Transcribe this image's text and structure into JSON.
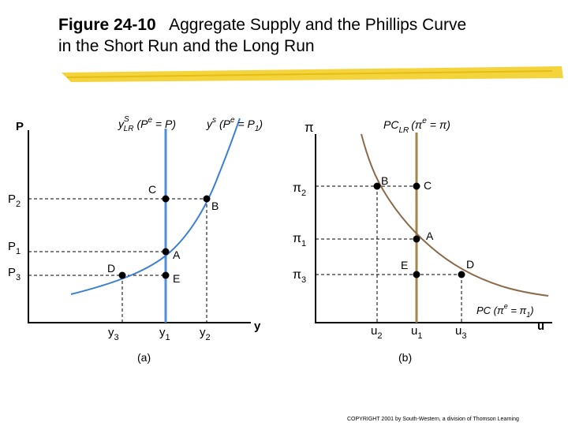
{
  "title": {
    "number": "Figure 24-10",
    "line1": "Aggregate Supply and the Phillips Curve",
    "line2": "in the Short Run and the Long Run"
  },
  "panel_a": {
    "caption": "(a)",
    "y_axis": "P",
    "x_axis": "y",
    "lras": {
      "main": "y",
      "sup": "S",
      "sub": "LR",
      "rest": "(P",
      "sup2": "e",
      "rest2": " = P)"
    },
    "sras": {
      "main": "y",
      "sup": "s",
      "rest": "(P",
      "sup2": "e",
      "rest2": " = P",
      "sub2": "1",
      "rest3": ")"
    },
    "price_ticks": [
      {
        "main": "P",
        "sub": "2"
      },
      {
        "main": "P",
        "sub": "1"
      },
      {
        "main": "P",
        "sub": "3"
      }
    ],
    "output_ticks": [
      {
        "main": "y",
        "sub": "3"
      },
      {
        "main": "y",
        "sub": "1"
      },
      {
        "main": "y",
        "sub": "2"
      }
    ],
    "points": {
      "A": "A",
      "B": "B",
      "C": "C",
      "D": "D",
      "E": "E"
    }
  },
  "panel_b": {
    "caption": "(b)",
    "y_axis": "π",
    "x_axis": "u",
    "lrpc": {
      "main": "PC",
      "sub": "LR",
      "rest": "(π",
      "sup": "e",
      "rest2": " = π)"
    },
    "srpc": {
      "main": "PC (π",
      "sup": "e",
      "rest": " = π",
      "sub": "1",
      "rest2": ")"
    },
    "inflation_ticks": [
      {
        "main": "π",
        "sub": "2"
      },
      {
        "main": "π",
        "sub": "1"
      },
      {
        "main": "π",
        "sub": "3"
      }
    ],
    "unemployment_ticks": [
      {
        "main": "u",
        "sub": "2"
      },
      {
        "main": "u",
        "sub": "1"
      },
      {
        "main": "u",
        "sub": "3"
      }
    ],
    "points": {
      "A": "A",
      "B": "B",
      "C": "C",
      "D": "D",
      "E": "E"
    }
  },
  "footer": {
    "copyright": "COPYRIGHT 2001 by South-Western, a division of Thomson Learning"
  },
  "colors": {
    "sras_curve": "#3b7fd4",
    "lras_line": "#4f8fd8",
    "phillips_curve": "#8b6a4a",
    "lrpc_line": "#a5854a",
    "highlight": "#f2cc1a"
  }
}
